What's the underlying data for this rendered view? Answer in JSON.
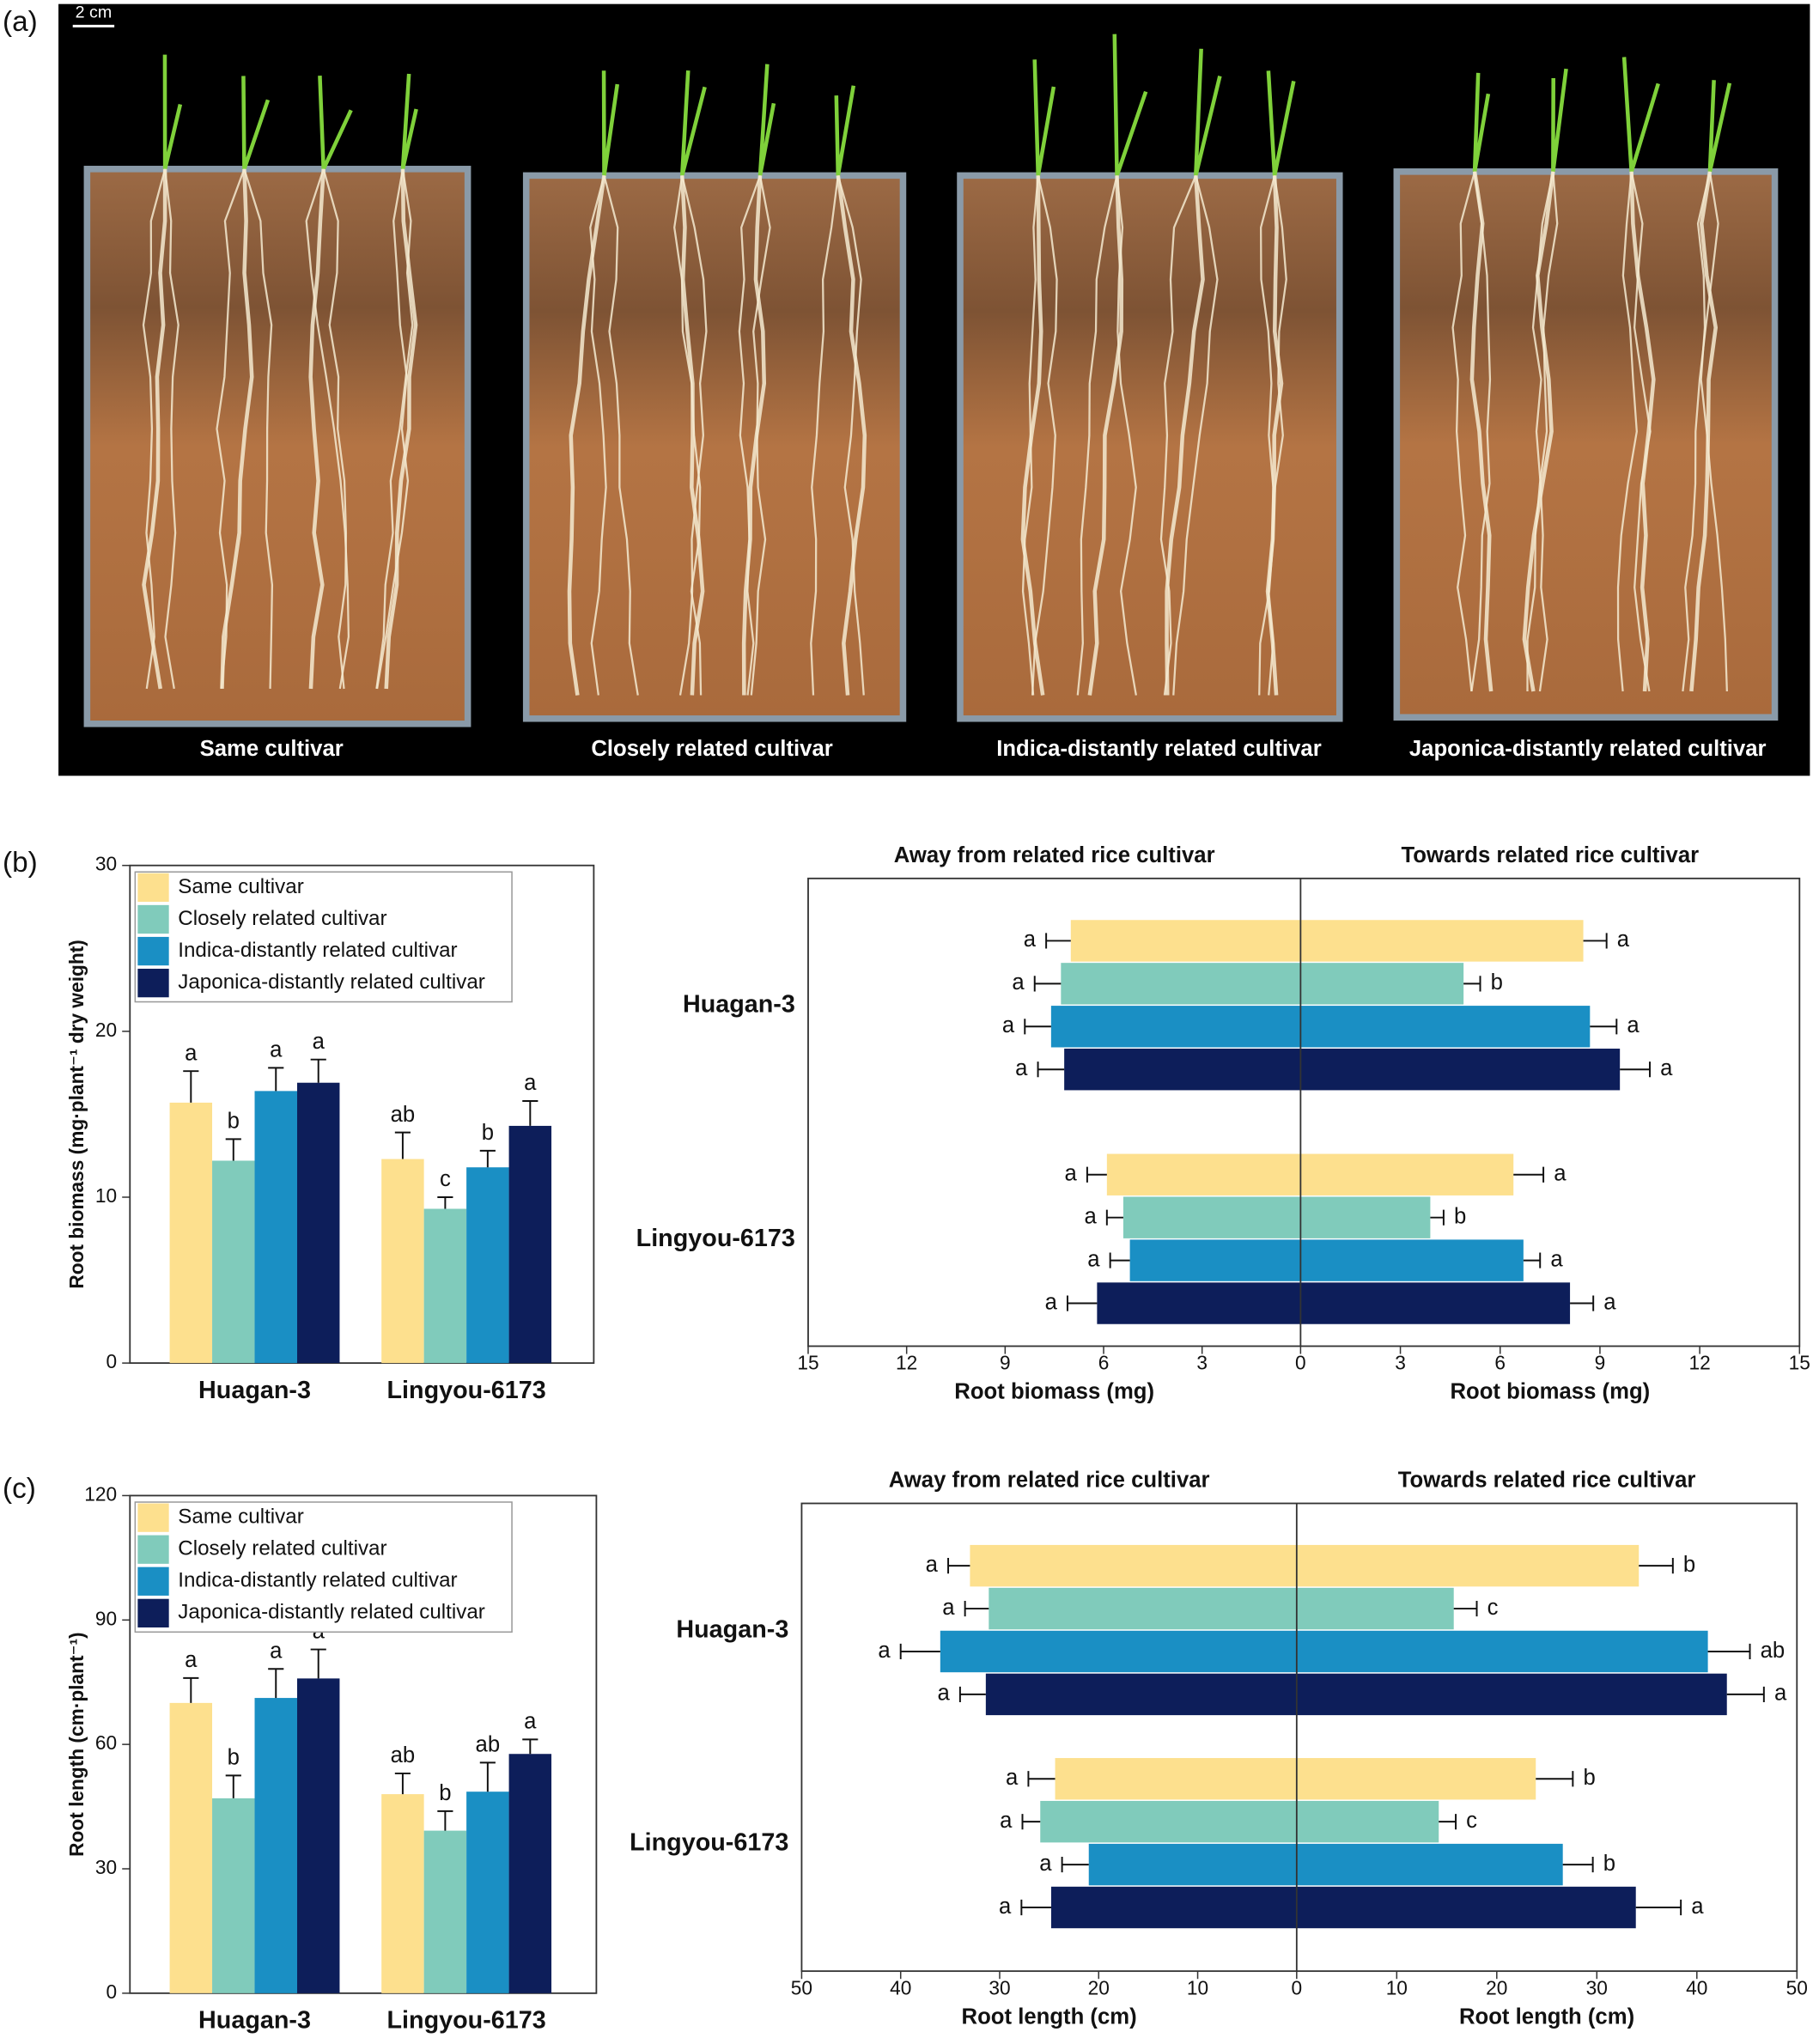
{
  "figure": {
    "panel_labels": [
      "(a)",
      "(b)",
      "(c)"
    ],
    "photo": {
      "scale_bar": "2 cm",
      "captions": [
        "Same cultivar",
        "Closely related cultivar",
        "Indica-distantly related cultivar",
        "Japonica-distantly related cultivar"
      ]
    }
  },
  "chart_data": [
    {
      "type": "bar",
      "ylabel": "Root biomass (mg·plant⁻¹ dry weight)",
      "categories": [
        "Huagan-3",
        "Lingyou-6173"
      ],
      "ylim": [
        0,
        30
      ],
      "yticks": [
        0,
        10,
        20,
        30
      ],
      "legend": "upper left",
      "series": [
        {
          "name": "Same cultivar",
          "color": "#fde08e",
          "values": [
            15.7,
            12.3
          ],
          "errors": [
            1.9,
            1.6
          ],
          "letters": [
            "a",
            "ab"
          ]
        },
        {
          "name": "Closely related cultivar",
          "color": "#80cbbb",
          "values": [
            12.2,
            9.3
          ],
          "errors": [
            1.3,
            0.7
          ],
          "letters": [
            "b",
            "c"
          ]
        },
        {
          "name": "Indica-distantly related cultivar",
          "color": "#1a8fc4",
          "values": [
            16.4,
            11.8
          ],
          "errors": [
            1.4,
            1.0
          ],
          "letters": [
            "a",
            "b"
          ]
        },
        {
          "name": "Japonica-distantly related cultivar",
          "color": "#0d1e5a",
          "values": [
            16.9,
            14.3
          ],
          "errors": [
            1.4,
            1.5
          ],
          "letters": [
            "a",
            "a"
          ]
        }
      ]
    },
    {
      "type": "butterfly",
      "categories": [
        "Huagan-3",
        "Lingyou-6173"
      ],
      "sides": [
        {
          "title": "Away from related rice cultivar",
          "xlabel": "Root biomass (mg)",
          "xlim": [
            0,
            15
          ],
          "xticks": [
            15,
            12,
            9,
            6,
            3
          ],
          "series": [
            {
              "color": "#fde08e",
              "values": [
                7.0,
                5.9
              ],
              "errors": [
                0.75,
                0.6
              ],
              "letters": [
                "a",
                "a"
              ]
            },
            {
              "color": "#80cbbb",
              "values": [
                7.3,
                5.4
              ],
              "errors": [
                0.8,
                0.5
              ],
              "letters": [
                "a",
                "a"
              ]
            },
            {
              "color": "#1a8fc4",
              "values": [
                7.6,
                5.2
              ],
              "errors": [
                0.8,
                0.6
              ],
              "letters": [
                "a",
                "a"
              ]
            },
            {
              "color": "#0d1e5a",
              "values": [
                7.2,
                6.2
              ],
              "errors": [
                0.8,
                0.9
              ],
              "letters": [
                "a",
                "a"
              ]
            }
          ]
        },
        {
          "title": "Towards related rice cultivar",
          "xlabel": "Root biomass (mg)",
          "xlim": [
            0,
            15
          ],
          "xticks": [
            0,
            3,
            6,
            9,
            12,
            15
          ],
          "series": [
            {
              "color": "#fde08e",
              "values": [
                8.5,
                6.4
              ],
              "errors": [
                0.7,
                0.9
              ],
              "letters": [
                "a",
                "a"
              ]
            },
            {
              "color": "#80cbbb",
              "values": [
                4.9,
                3.9
              ],
              "errors": [
                0.5,
                0.4
              ],
              "letters": [
                "b",
                "b"
              ]
            },
            {
              "color": "#1a8fc4",
              "values": [
                8.7,
                6.7
              ],
              "errors": [
                0.8,
                0.5
              ],
              "letters": [
                "a",
                "a"
              ]
            },
            {
              "color": "#0d1e5a",
              "values": [
                9.6,
                8.1
              ],
              "errors": [
                0.9,
                0.7
              ],
              "letters": [
                "a",
                "a"
              ]
            }
          ]
        }
      ]
    },
    {
      "type": "bar",
      "ylabel": "Root length (cm·plant⁻¹)",
      "categories": [
        "Huagan-3",
        "Lingyou-6173"
      ],
      "ylim": [
        0,
        120
      ],
      "yticks": [
        0,
        30,
        60,
        90,
        120
      ],
      "legend": "upper left",
      "series": [
        {
          "name": "Same cultivar",
          "color": "#fde08e",
          "values": [
            70,
            48
          ],
          "errors": [
            6,
            5
          ],
          "letters": [
            "a",
            "ab"
          ]
        },
        {
          "name": "Closely related cultivar",
          "color": "#80cbbb",
          "values": [
            47,
            39.2
          ],
          "errors": [
            5.5,
            4.7
          ],
          "letters": [
            "b",
            "b"
          ]
        },
        {
          "name": "Indica-distantly related cultivar",
          "color": "#1a8fc4",
          "values": [
            71.2,
            48.6
          ],
          "errors": [
            7,
            7
          ],
          "letters": [
            "a",
            "ab"
          ]
        },
        {
          "name": "Japonica-distantly related cultivar",
          "color": "#0d1e5a",
          "values": [
            75.9,
            57.7
          ],
          "errors": [
            7,
            3.5
          ],
          "letters": [
            "a",
            "a"
          ]
        }
      ]
    },
    {
      "type": "butterfly",
      "categories": [
        "Huagan-3",
        "Lingyou-6173"
      ],
      "sides": [
        {
          "title": "Away from related rice cultivar",
          "xlabel": "Root length (cm)",
          "xlim": [
            0,
            50
          ],
          "xticks": [
            50,
            40,
            30,
            20,
            10
          ],
          "series": [
            {
              "color": "#fde08e",
              "values": [
                33,
                24.4
              ],
              "errors": [
                2.2,
                2.7
              ],
              "letters": [
                "a",
                "a"
              ]
            },
            {
              "color": "#80cbbb",
              "values": [
                31.1,
                25.9
              ],
              "errors": [
                2.4,
                1.8
              ],
              "letters": [
                "a",
                "a"
              ]
            },
            {
              "color": "#1a8fc4",
              "values": [
                36,
                21
              ],
              "errors": [
                4,
                2.7
              ],
              "letters": [
                "a",
                "a"
              ]
            },
            {
              "color": "#0d1e5a",
              "values": [
                31.4,
                24.8
              ],
              "errors": [
                2.6,
                3
              ],
              "letters": [
                "a",
                "a"
              ]
            }
          ]
        },
        {
          "title": "Towards related rice cultivar",
          "xlabel": "Root length (cm)",
          "xlim": [
            0,
            50
          ],
          "xticks": [
            0,
            10,
            20,
            30,
            40,
            50
          ],
          "series": [
            {
              "color": "#fde08e",
              "values": [
                34.2,
                23.9
              ],
              "errors": [
                3.4,
                3.7
              ],
              "letters": [
                "b",
                "b"
              ]
            },
            {
              "color": "#80cbbb",
              "values": [
                15.7,
                14.2
              ],
              "errors": [
                2.3,
                1.7
              ],
              "letters": [
                "c",
                "c"
              ]
            },
            {
              "color": "#1a8fc4",
              "values": [
                41.1,
                26.6
              ],
              "errors": [
                4.2,
                3
              ],
              "letters": [
                "ab",
                "b"
              ]
            },
            {
              "color": "#0d1e5a",
              "values": [
                43,
                33.9
              ],
              "errors": [
                3.7,
                4.5
              ],
              "letters": [
                "a",
                "a"
              ]
            }
          ]
        }
      ]
    }
  ]
}
